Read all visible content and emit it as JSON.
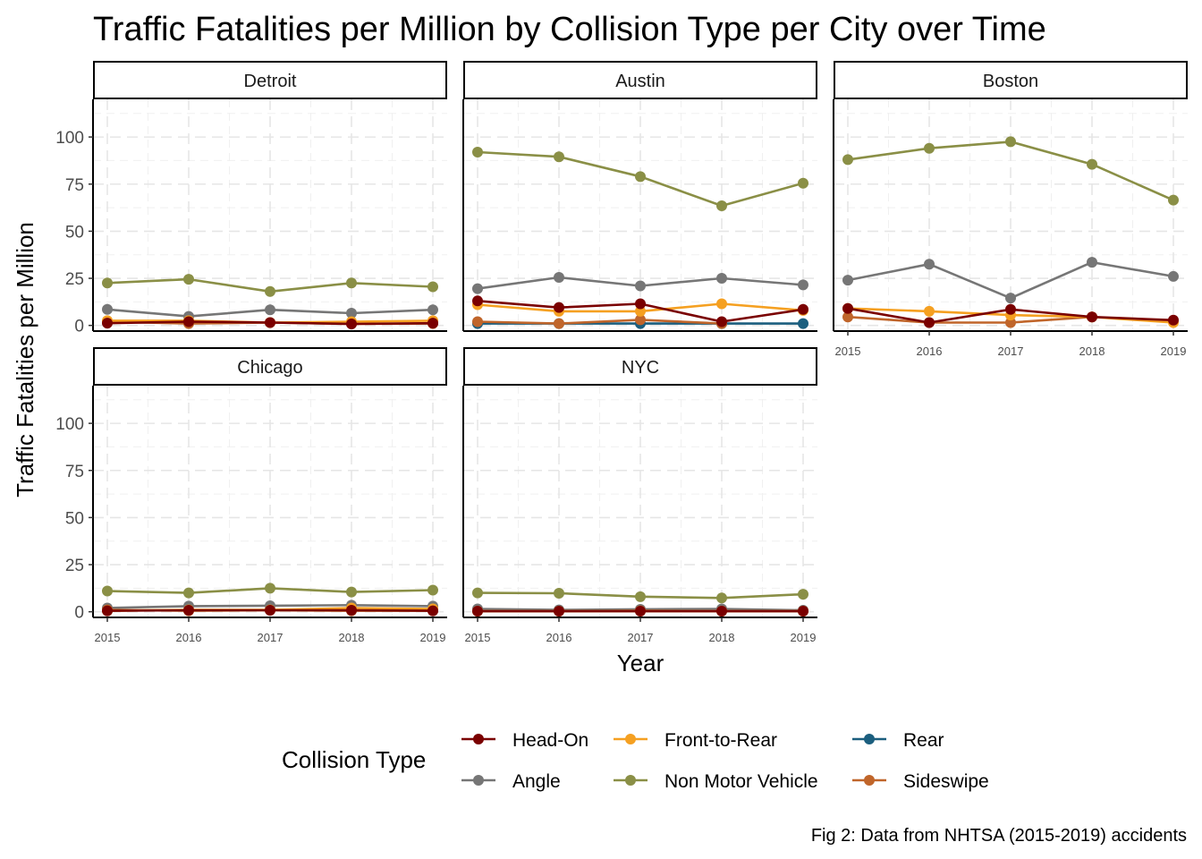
{
  "chart_data": {
    "type": "line",
    "title": "Traffic Fatalities per Million by Collision Type per City over Time",
    "xlabel": "Year",
    "ylabel": "Traffic Fatalities per Million",
    "caption": "Fig 2: Data from NHTSA (2015-2019) accidents",
    "x": [
      2015,
      2016,
      2017,
      2018,
      2019
    ],
    "x_ticks": [
      "2015",
      "2016",
      "2017",
      "2018",
      "2019"
    ],
    "y_ticks": [
      "0",
      "25",
      "50",
      "75",
      "100"
    ],
    "ylim": [
      -3,
      120
    ],
    "grid": true,
    "legend": {
      "title": "Collision Type",
      "position": "bottom",
      "entries": [
        {
          "name": "Head-On",
          "color": "#7a0000"
        },
        {
          "name": "Angle",
          "color": "#767676"
        },
        {
          "name": "Front-to-Rear",
          "color": "#f5a021"
        },
        {
          "name": "Non Motor Vehicle",
          "color": "#8a8f46"
        },
        {
          "name": "Rear",
          "color": "#1b5e7e"
        },
        {
          "name": "Sideswipe",
          "color": "#c0652a"
        }
      ]
    },
    "panels": [
      {
        "city": "Detroit",
        "series": [
          {
            "name": "Head-On",
            "values": [
              1.2,
              2.0,
              1.5,
              0.8,
              1.2
            ]
          },
          {
            "name": "Angle",
            "values": [
              8.5,
              4.8,
              8.3,
              6.5,
              8.3
            ]
          },
          {
            "name": "Front-to-Rear",
            "values": [
              2.5,
              2.5,
              1.5,
              2.0,
              2.5
            ]
          },
          {
            "name": "Non Motor Vehicle",
            "values": [
              22.5,
              24.5,
              18.0,
              22.5,
              20.5
            ]
          },
          {
            "name": "Sideswipe",
            "values": [
              2.0,
              1.0,
              1.5,
              0.8,
              1.0
            ]
          }
        ]
      },
      {
        "city": "Austin",
        "series": [
          {
            "name": "Head-On",
            "values": [
              13.0,
              9.5,
              11.5,
              2.0,
              8.5
            ]
          },
          {
            "name": "Angle",
            "values": [
              19.5,
              25.5,
              21.0,
              25.0,
              21.5
            ]
          },
          {
            "name": "Front-to-Rear",
            "values": [
              11.0,
              7.5,
              7.5,
              11.5,
              8.0
            ]
          },
          {
            "name": "Non Motor Vehicle",
            "values": [
              92.0,
              89.5,
              79.0,
              63.5,
              75.5
            ]
          },
          {
            "name": "Rear",
            "values": [
              1.0,
              1.0,
              1.0,
              1.0,
              1.0
            ]
          },
          {
            "name": "Sideswipe",
            "values": [
              2.0,
              1.0,
              3.0,
              1.0,
              null
            ]
          }
        ]
      },
      {
        "city": "Boston",
        "series": [
          {
            "name": "Head-On",
            "values": [
              9.0,
              1.5,
              8.5,
              4.5,
              2.8
            ]
          },
          {
            "name": "Angle",
            "values": [
              24.0,
              32.5,
              14.5,
              33.5,
              26.0
            ]
          },
          {
            "name": "Front-to-Rear",
            "values": [
              9.0,
              7.5,
              5.5,
              4.5,
              1.5
            ]
          },
          {
            "name": "Non Motor Vehicle",
            "values": [
              88.0,
              94.0,
              97.5,
              85.5,
              66.5
            ]
          },
          {
            "name": "Sideswipe",
            "values": [
              4.5,
              1.5,
              1.5,
              4.5,
              null
            ]
          }
        ]
      },
      {
        "city": "Chicago",
        "series": [
          {
            "name": "Head-On",
            "values": [
              0.5,
              0.8,
              0.8,
              0.8,
              0.5
            ]
          },
          {
            "name": "Angle",
            "values": [
              2.0,
              3.0,
              3.2,
              3.5,
              3.0
            ]
          },
          {
            "name": "Front-to-Rear",
            "values": [
              0.5,
              1.0,
              1.0,
              2.0,
              1.5
            ]
          },
          {
            "name": "Non Motor Vehicle",
            "values": [
              11.0,
              10.0,
              12.5,
              10.5,
              11.5
            ]
          },
          {
            "name": "Sideswipe",
            "values": [
              1.0,
              0.5,
              0.8,
              0.5,
              0.5
            ]
          }
        ]
      },
      {
        "city": "NYC",
        "series": [
          {
            "name": "Head-On",
            "values": [
              0.3,
              0.3,
              0.3,
              0.3,
              0.3
            ]
          },
          {
            "name": "Angle",
            "values": [
              1.5,
              1.0,
              1.3,
              1.5,
              0.8
            ]
          },
          {
            "name": "Front-to-Rear",
            "values": [
              0.3,
              0.3,
              0.3,
              0.3,
              0.3
            ]
          },
          {
            "name": "Non Motor Vehicle",
            "values": [
              10.0,
              9.8,
              8.0,
              7.3,
              9.3
            ]
          },
          {
            "name": "Sideswipe",
            "values": [
              0.3,
              0.3,
              0.5,
              0.3,
              0.3
            ]
          }
        ]
      }
    ]
  }
}
